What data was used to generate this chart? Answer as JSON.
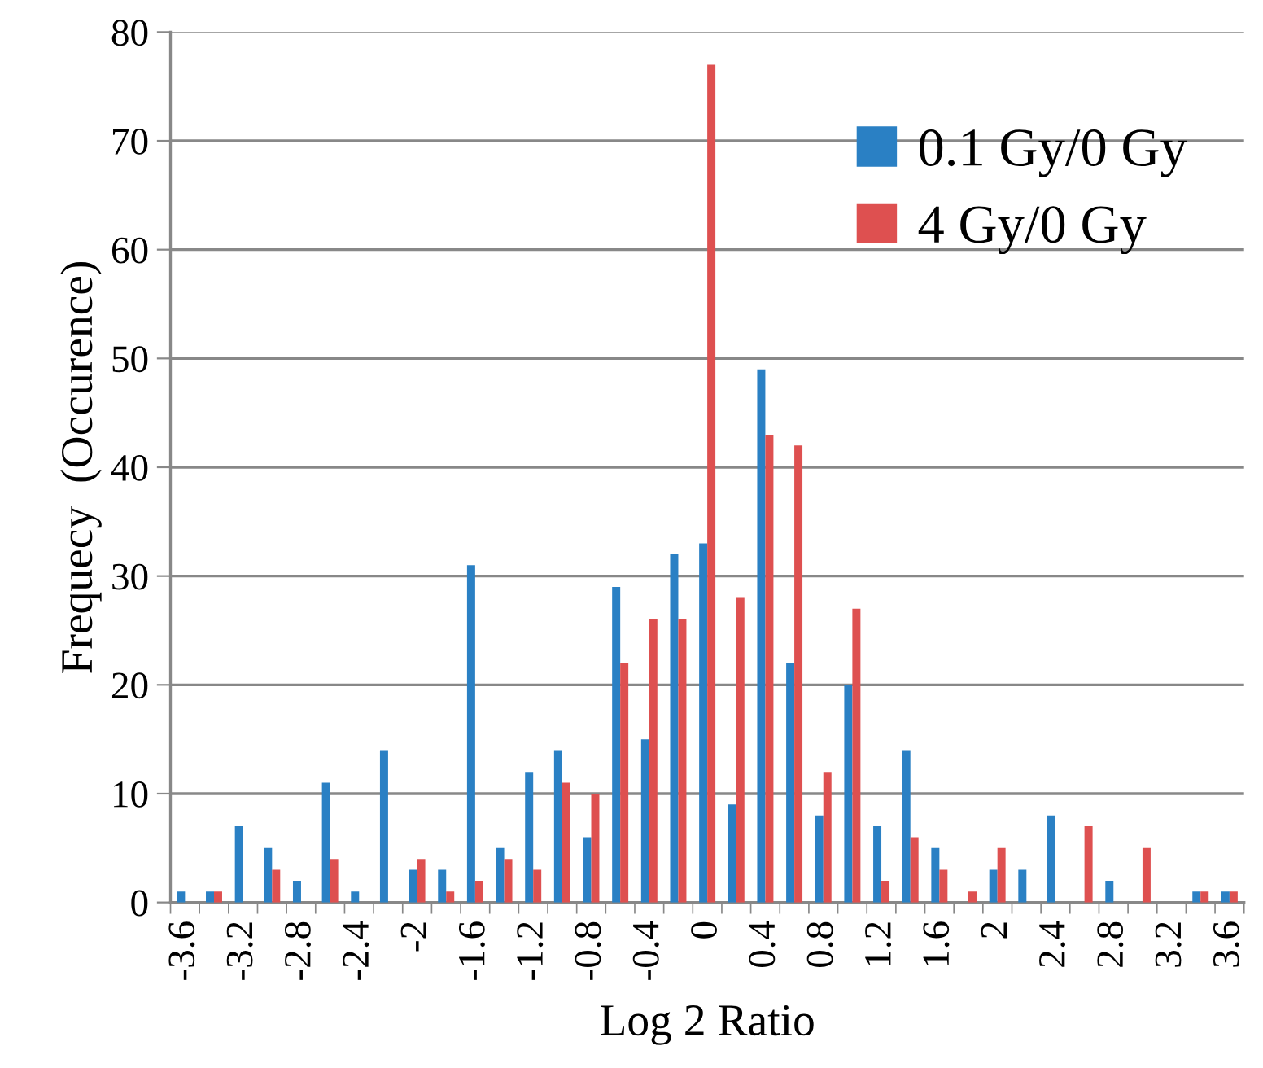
{
  "chart_data": {
    "type": "bar",
    "xlabel": "Log 2 Ratio",
    "ylabel": "Frequecy  (Occurence)",
    "categories": [
      "-3.6",
      null,
      "-3.2",
      null,
      "-2.8",
      null,
      "-2.4",
      null,
      "-2",
      null,
      "-1.6",
      null,
      "-1.2",
      null,
      "-0.8",
      null,
      "-0.4",
      null,
      "0",
      null,
      "0.4",
      null,
      "0.8",
      null,
      "1.2",
      null,
      "1.6",
      null,
      "2",
      null,
      "2.4",
      null,
      "2.8",
      null,
      "3.2",
      null,
      "3.6"
    ],
    "series": [
      {
        "name": "0.1 Gy/0 Gy",
        "color": "#2a80c4",
        "values": [
          1,
          1,
          7,
          5,
          2,
          11,
          1,
          14,
          3,
          3,
          31,
          5,
          12,
          14,
          6,
          29,
          15,
          32,
          33,
          9,
          49,
          22,
          8,
          20,
          7,
          14,
          5,
          0,
          3,
          3,
          8,
          0,
          2,
          0,
          0,
          1,
          1
        ]
      },
      {
        "name": "4 Gy/0 Gy",
        "color": "#de5050",
        "values": [
          0,
          1,
          0,
          3,
          0,
          4,
          0,
          0,
          4,
          1,
          2,
          4,
          3,
          11,
          10,
          22,
          26,
          26,
          77,
          28,
          43,
          42,
          12,
          27,
          2,
          6,
          3,
          1,
          5,
          0,
          0,
          7,
          0,
          5,
          0,
          1,
          1
        ]
      }
    ],
    "ylim": [
      0,
      80
    ],
    "yticks": [
      0,
      10,
      20,
      30,
      40,
      50,
      60,
      70,
      80
    ],
    "grid": "y",
    "legend": "top right"
  }
}
